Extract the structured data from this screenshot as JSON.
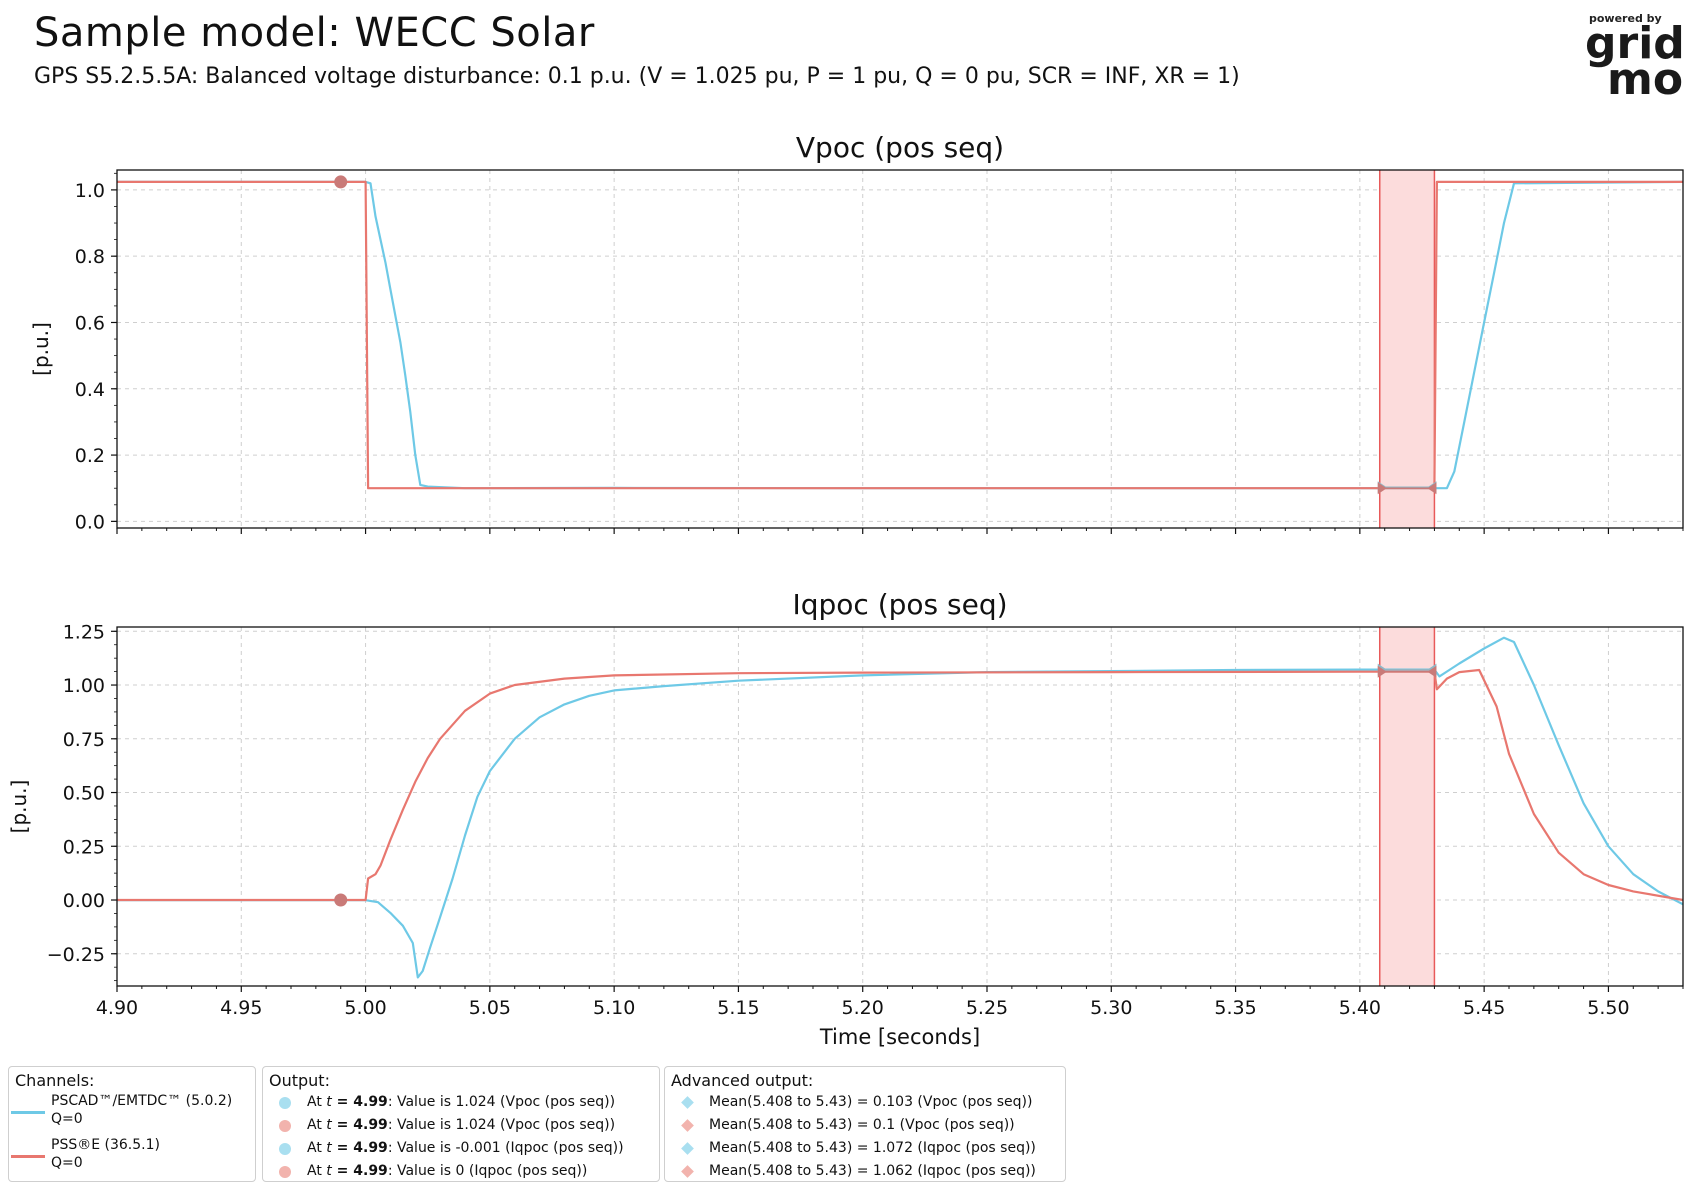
{
  "header": {
    "title": "Sample model: WECC Solar",
    "subtitle": "GPS S5.2.5.5A: Balanced voltage disturbance: 0.1 p.u. (V = 1.025 pu, P = 1 pu, Q = 0 pu, SCR = INF, XR = 1)"
  },
  "logo": {
    "top_text": "powered by",
    "line1": "grid",
    "line2": "mo"
  },
  "colors": {
    "pscad": "#6ec9e6",
    "psse": "#e8776f",
    "shade": "#fcdcdc",
    "shade_edge": "#e85a5a",
    "marker": "#c97a78"
  },
  "chart_data": [
    {
      "type": "line",
      "title": "Vpoc (pos seq)",
      "xlabel": "",
      "ylabel": "[p.u.]",
      "xlim": [
        4.9,
        5.53
      ],
      "ylim": [
        -0.02,
        1.06
      ],
      "yticks": [
        "0.0",
        "0.2",
        "0.4",
        "0.6",
        "0.8",
        "1.0"
      ],
      "ytick_values": [
        0.0,
        0.2,
        0.4,
        0.6,
        0.8,
        1.0
      ],
      "grid": true,
      "shaded_x": [
        5.408,
        5.43
      ],
      "series": [
        {
          "name": "PSCAD™/EMTDC™ (5.0.2)",
          "points": [
            [
              4.9,
              1.024
            ],
            [
              5.0,
              1.024
            ],
            [
              5.002,
              1.02
            ],
            [
              5.004,
              0.92
            ],
            [
              5.006,
              0.85
            ],
            [
              5.008,
              0.78
            ],
            [
              5.01,
              0.7
            ],
            [
              5.012,
              0.62
            ],
            [
              5.014,
              0.54
            ],
            [
              5.016,
              0.44
            ],
            [
              5.018,
              0.33
            ],
            [
              5.02,
              0.2
            ],
            [
              5.022,
              0.11
            ],
            [
              5.025,
              0.105
            ],
            [
              5.04,
              0.1
            ],
            [
              5.1,
              0.101
            ],
            [
              5.2,
              0.1
            ],
            [
              5.3,
              0.1
            ],
            [
              5.4,
              0.1
            ],
            [
              5.43,
              0.1
            ],
            [
              5.435,
              0.1
            ],
            [
              5.438,
              0.15
            ],
            [
              5.442,
              0.3
            ],
            [
              5.446,
              0.45
            ],
            [
              5.45,
              0.6
            ],
            [
              5.454,
              0.75
            ],
            [
              5.458,
              0.9
            ],
            [
              5.462,
              1.02
            ],
            [
              5.53,
              1.024
            ]
          ]
        },
        {
          "name": "PSS®E (36.5.1)",
          "points": [
            [
              4.9,
              1.024
            ],
            [
              5.0,
              1.024
            ],
            [
              5.001,
              0.1
            ],
            [
              5.1,
              0.1
            ],
            [
              5.2,
              0.1
            ],
            [
              5.3,
              0.1
            ],
            [
              5.4,
              0.1
            ],
            [
              5.43,
              0.1
            ],
            [
              5.431,
              1.024
            ],
            [
              5.53,
              1.024
            ]
          ]
        }
      ],
      "markers": {
        "point_at": 4.99,
        "point_value": 1.024,
        "mean_range": [
          5.408,
          5.43
        ],
        "mean_values": [
          0.103,
          0.1
        ]
      }
    },
    {
      "type": "line",
      "title": "Iqpoc (pos seq)",
      "xlabel": "Time [seconds]",
      "ylabel": "[p.u.]",
      "xlim": [
        4.9,
        5.53
      ],
      "ylim": [
        -0.4,
        1.27
      ],
      "xticks": [
        "4.90",
        "4.95",
        "5.00",
        "5.05",
        "5.10",
        "5.15",
        "5.20",
        "5.25",
        "5.30",
        "5.35",
        "5.40",
        "5.45",
        "5.50"
      ],
      "xtick_values": [
        4.9,
        4.95,
        5.0,
        5.05,
        5.1,
        5.15,
        5.2,
        5.25,
        5.3,
        5.35,
        5.4,
        5.45,
        5.5
      ],
      "yticks": [
        "−0.25",
        "0.00",
        "0.25",
        "0.50",
        "0.75",
        "1.00",
        "1.25"
      ],
      "ytick_values": [
        -0.25,
        0.0,
        0.25,
        0.5,
        0.75,
        1.0,
        1.25
      ],
      "grid": true,
      "shaded_x": [
        5.408,
        5.43
      ],
      "series": [
        {
          "name": "PSCAD™/EMTDC™ (5.0.2)",
          "points": [
            [
              4.9,
              -0.001
            ],
            [
              5.0,
              -0.001
            ],
            [
              5.005,
              -0.01
            ],
            [
              5.01,
              -0.06
            ],
            [
              5.015,
              -0.12
            ],
            [
              5.019,
              -0.2
            ],
            [
              5.021,
              -0.36
            ],
            [
              5.023,
              -0.33
            ],
            [
              5.026,
              -0.22
            ],
            [
              5.03,
              -0.08
            ],
            [
              5.035,
              0.1
            ],
            [
              5.04,
              0.3
            ],
            [
              5.045,
              0.48
            ],
            [
              5.05,
              0.6
            ],
            [
              5.06,
              0.75
            ],
            [
              5.07,
              0.85
            ],
            [
              5.08,
              0.91
            ],
            [
              5.09,
              0.95
            ],
            [
              5.1,
              0.975
            ],
            [
              5.12,
              0.995
            ],
            [
              5.15,
              1.02
            ],
            [
              5.2,
              1.045
            ],
            [
              5.25,
              1.06
            ],
            [
              5.3,
              1.065
            ],
            [
              5.35,
              1.07
            ],
            [
              5.4,
              1.072
            ],
            [
              5.43,
              1.072
            ],
            [
              5.432,
              1.04
            ],
            [
              5.436,
              1.07
            ],
            [
              5.44,
              1.1
            ],
            [
              5.45,
              1.17
            ],
            [
              5.458,
              1.22
            ],
            [
              5.462,
              1.2
            ],
            [
              5.47,
              1.0
            ],
            [
              5.48,
              0.72
            ],
            [
              5.49,
              0.45
            ],
            [
              5.5,
              0.25
            ],
            [
              5.51,
              0.12
            ],
            [
              5.52,
              0.04
            ],
            [
              5.53,
              -0.02
            ]
          ]
        },
        {
          "name": "PSS®E (36.5.1)",
          "points": [
            [
              4.9,
              0.0
            ],
            [
              5.0,
              0.0
            ],
            [
              5.001,
              0.1
            ],
            [
              5.004,
              0.12
            ],
            [
              5.006,
              0.16
            ],
            [
              5.01,
              0.28
            ],
            [
              5.015,
              0.42
            ],
            [
              5.02,
              0.55
            ],
            [
              5.025,
              0.66
            ],
            [
              5.03,
              0.75
            ],
            [
              5.04,
              0.88
            ],
            [
              5.05,
              0.96
            ],
            [
              5.06,
              1.0
            ],
            [
              5.08,
              1.03
            ],
            [
              5.1,
              1.045
            ],
            [
              5.15,
              1.055
            ],
            [
              5.2,
              1.058
            ],
            [
              5.3,
              1.06
            ],
            [
              5.4,
              1.062
            ],
            [
              5.43,
              1.062
            ],
            [
              5.431,
              0.98
            ],
            [
              5.435,
              1.03
            ],
            [
              5.44,
              1.06
            ],
            [
              5.448,
              1.07
            ],
            [
              5.455,
              0.9
            ],
            [
              5.46,
              0.68
            ],
            [
              5.47,
              0.4
            ],
            [
              5.48,
              0.22
            ],
            [
              5.49,
              0.12
            ],
            [
              5.5,
              0.07
            ],
            [
              5.51,
              0.04
            ],
            [
              5.53,
              0.0
            ]
          ]
        }
      ],
      "markers": {
        "point_at": 4.99,
        "point_value": 0.0,
        "mean_range": [
          5.408,
          5.43
        ],
        "mean_values": [
          1.072,
          1.062
        ]
      }
    }
  ],
  "legend": {
    "channels_title": "Channels:",
    "channels": [
      {
        "line1": "PSCAD™/EMTDC™ (5.0.2)",
        "line2": "Q=0",
        "color": "#6ec9e6"
      },
      {
        "line1": "PSS®E (36.5.1)",
        "line2": "Q=0",
        "color": "#e8776f"
      }
    ],
    "output_title": "Output:",
    "outputs": [
      {
        "prefix": "At ",
        "t": "t",
        "mid": " = 4.99",
        "text": ": Value is 1.024 (Vpoc (pos seq))",
        "color": "#a9dff0"
      },
      {
        "prefix": "At ",
        "t": "t",
        "mid": " = 4.99",
        "text": ": Value is 1.024 (Vpoc (pos seq))",
        "color": "#f2b3ad"
      },
      {
        "prefix": "At ",
        "t": "t",
        "mid": " = 4.99",
        "text": ": Value is -0.001 (Iqpoc (pos seq))",
        "color": "#a9dff0"
      },
      {
        "prefix": "At ",
        "t": "t",
        "mid": " = 4.99",
        "text": ": Value is 0 (Iqpoc (pos seq))",
        "color": "#f2b3ad"
      }
    ],
    "advanced_title": "Advanced output:",
    "advanced": [
      {
        "text": "Mean(5.408 to 5.43) = 0.103 (Vpoc (pos seq))",
        "color": "#a9dff0"
      },
      {
        "text": "Mean(5.408 to 5.43) = 0.1 (Vpoc (pos seq))",
        "color": "#f2b3ad"
      },
      {
        "text": "Mean(5.408 to 5.43) = 1.072 (Iqpoc (pos seq))",
        "color": "#a9dff0"
      },
      {
        "text": "Mean(5.408 to 5.43) = 1.062 (Iqpoc (pos seq))",
        "color": "#f2b3ad"
      }
    ]
  }
}
